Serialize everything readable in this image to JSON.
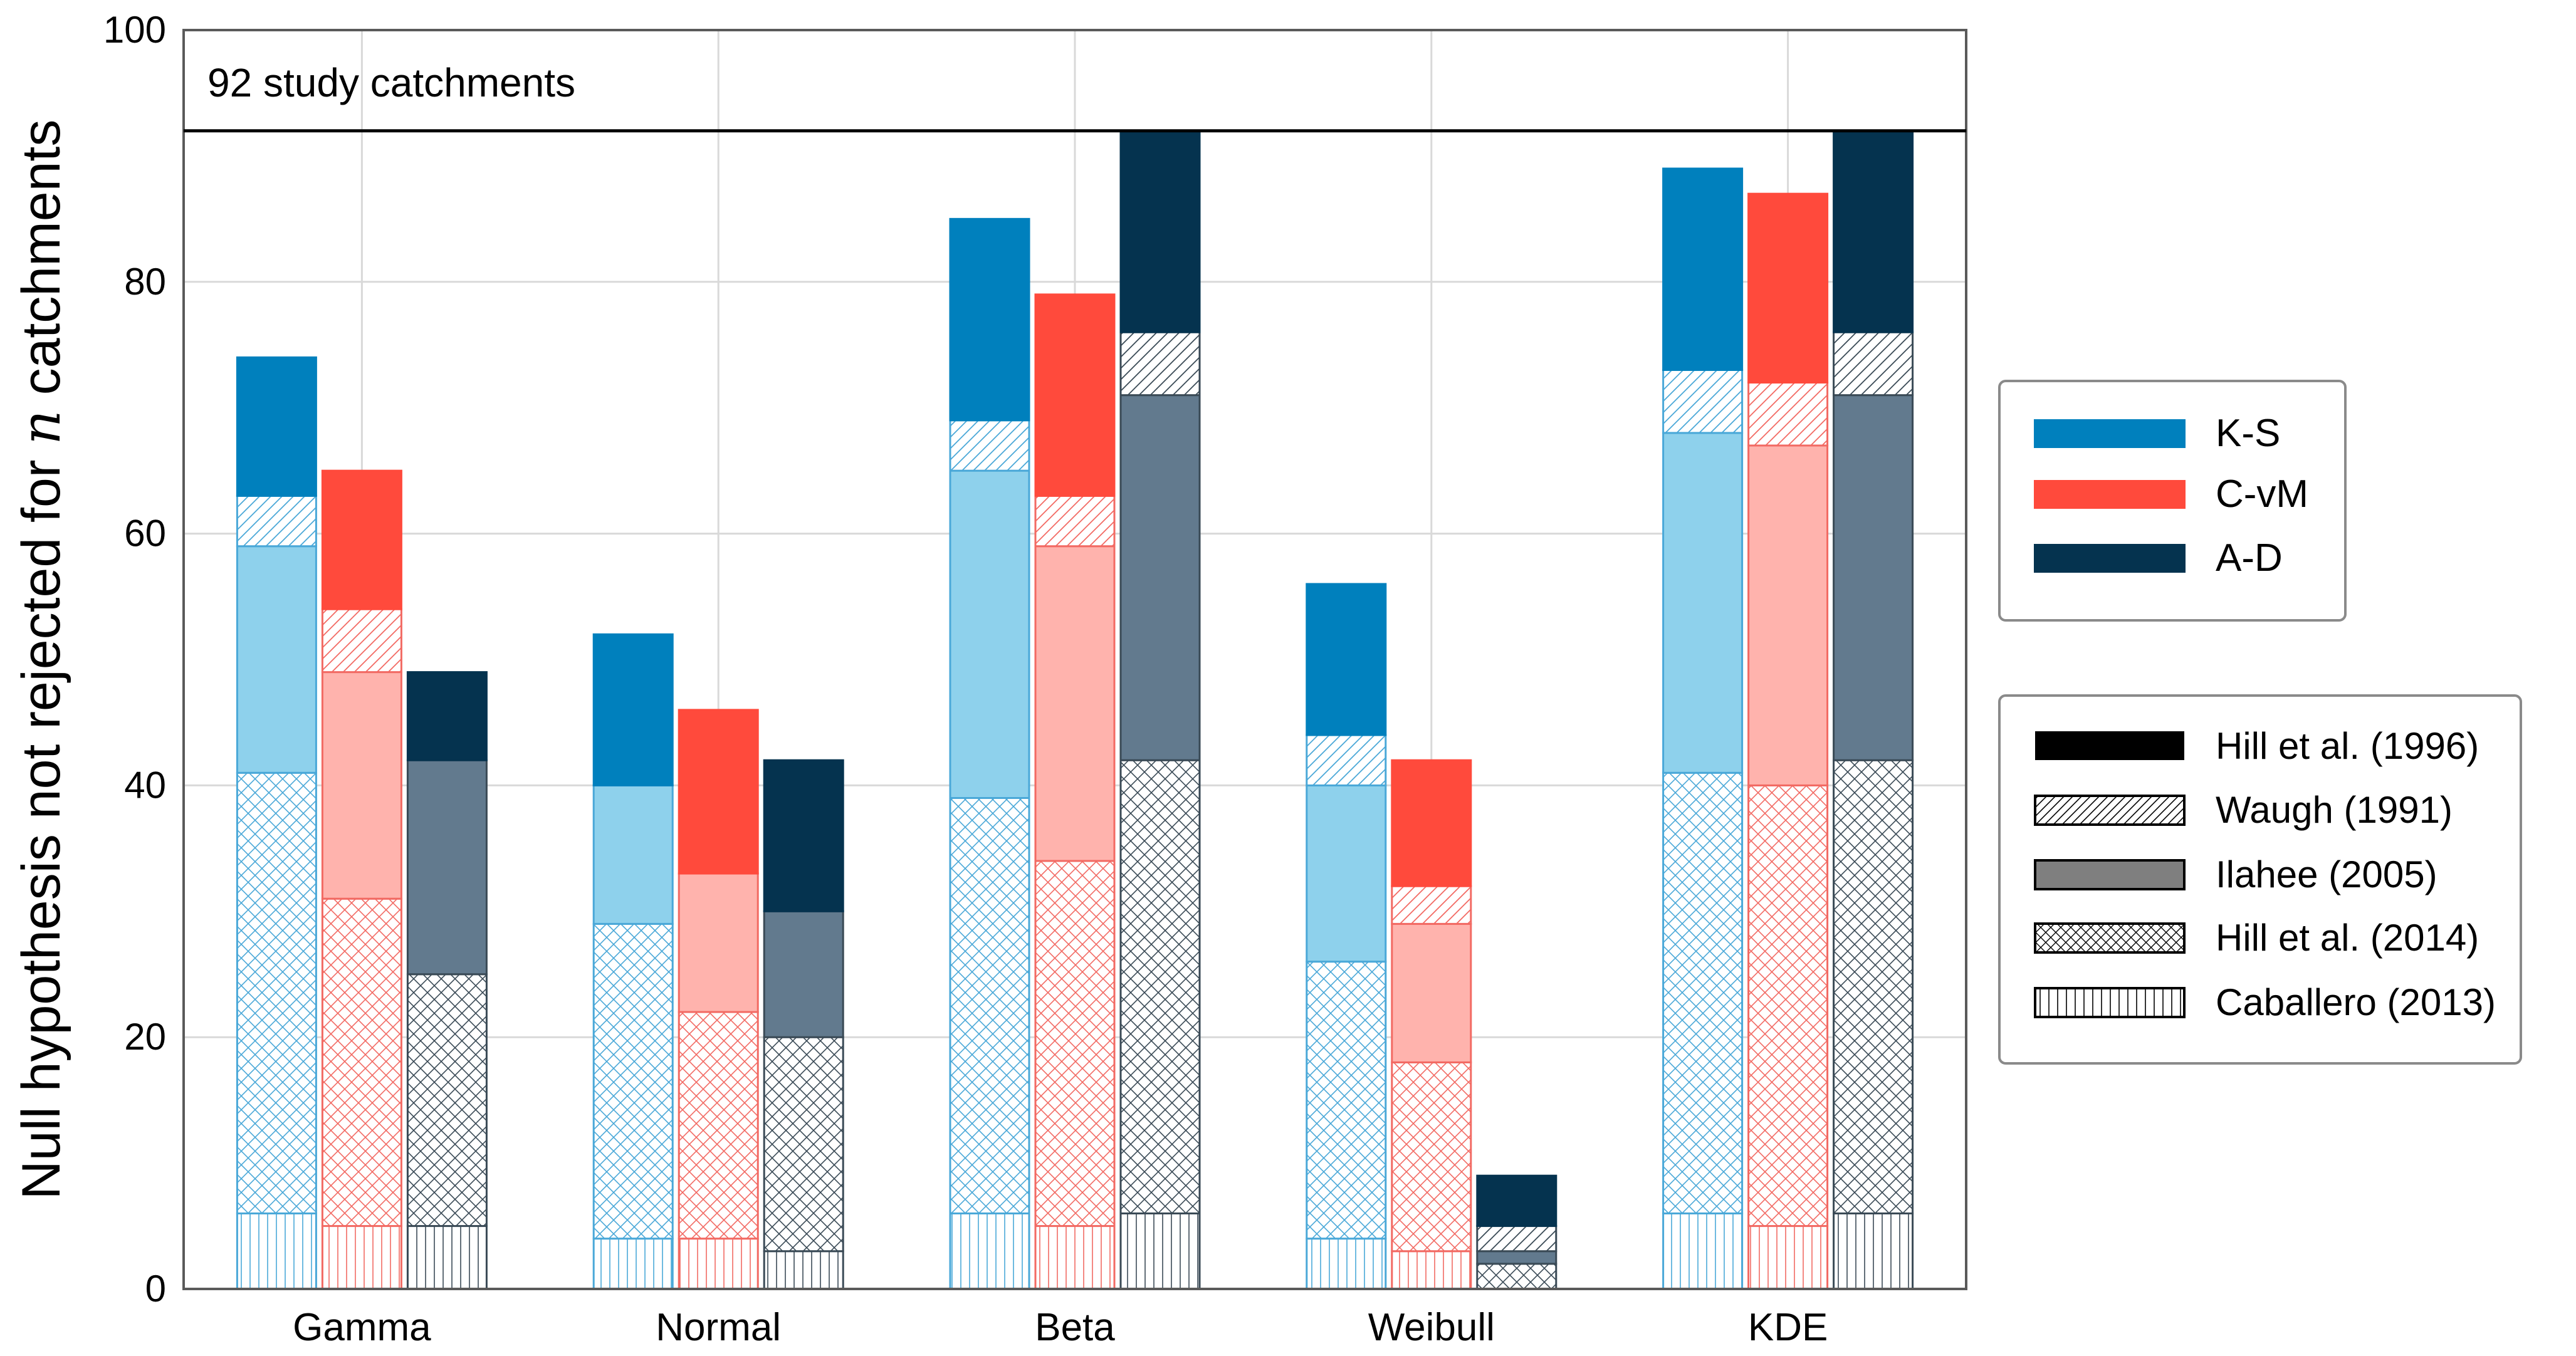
{
  "chart_data": {
    "type": "bar",
    "stacked": true,
    "ylabel_prefix": "Null hypothesis not rejected for ",
    "ylabel_var": "n",
    "ylabel_suffix": " catchments",
    "xlabel": "",
    "ylim": [
      0,
      100
    ],
    "yticks": [
      0,
      20,
      40,
      60,
      80,
      100
    ],
    "grid": true,
    "reference_line": {
      "value": 92,
      "label": "92 study catchments"
    },
    "categories": [
      "Gamma",
      "Normal",
      "Beta",
      "Weibull",
      "KDE"
    ],
    "tests": [
      {
        "name": "K-S",
        "colors": {
          "base": "#0080BD",
          "light": "#8ED1EC",
          "line": "#4AA8D8"
        }
      },
      {
        "name": "C-vM",
        "colors": {
          "base": "#FF4A3C",
          "light": "#FFB3AD",
          "line": "#F26A63"
        }
      },
      {
        "name": "A-D",
        "colors": {
          "base": "#05334F",
          "light": "#627A8E",
          "line": "#3A4A56"
        }
      }
    ],
    "methods": [
      "Caballero (2013)",
      "Hill et al. (2014)",
      "Ilahee (2005)",
      "Waugh (1991)",
      "Hill et al. (1996)"
    ],
    "method_patterns": [
      "vlines",
      "crosshatch",
      "solid-light",
      "diag",
      "solid-dark"
    ],
    "series_cumulative_note": "values are cumulative stack tops per method, bottom to top",
    "data": {
      "Gamma": {
        "K-S": [
          6,
          41,
          59,
          63,
          74
        ],
        "C-vM": [
          5,
          31,
          49,
          54,
          65
        ],
        "A-D": [
          5,
          25,
          42,
          42,
          49
        ]
      },
      "Normal": {
        "K-S": [
          4,
          29,
          40,
          40,
          52
        ],
        "C-vM": [
          4,
          22,
          33,
          33,
          46
        ],
        "A-D": [
          3,
          20,
          30,
          30,
          42
        ]
      },
      "Beta": {
        "K-S": [
          6,
          39,
          65,
          69,
          85
        ],
        "C-vM": [
          5,
          34,
          59,
          63,
          79
        ],
        "A-D": [
          6,
          42,
          71,
          76,
          92
        ]
      },
      "Weibull": {
        "K-S": [
          4,
          26,
          40,
          44,
          56
        ],
        "C-vM": [
          3,
          18,
          29,
          32,
          42
        ],
        "A-D": [
          0,
          2,
          3,
          5,
          9
        ]
      },
      "KDE": {
        "K-S": [
          6,
          41,
          68,
          73,
          89
        ],
        "C-vM": [
          5,
          40,
          67,
          72,
          87
        ],
        "A-D": [
          6,
          42,
          71,
          76,
          92
        ]
      }
    },
    "legend_tests": [
      "K-S",
      "C-vM",
      "A-D"
    ],
    "legend_methods": [
      "Hill et al. (1996)",
      "Waugh (1991)",
      "Ilahee (2005)",
      "Hill et al. (2014)",
      "Caballero (2013)"
    ],
    "legend_placement": "right"
  }
}
